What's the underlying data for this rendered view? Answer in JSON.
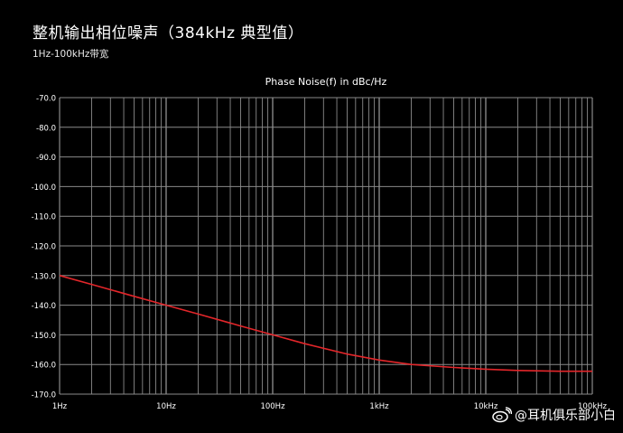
{
  "header": {
    "title": "整机输出相位噪声（384kHz 典型值）",
    "subtitle": "1Hz-100kHz带宽"
  },
  "watermark": {
    "text": "@耳机俱乐部小白",
    "icon": "weibo-logo-icon"
  },
  "colors": {
    "background": "#000000",
    "grid": "#8a8a8a",
    "curve": "#e3262a",
    "text": "#ffffff"
  },
  "chart_data": {
    "type": "line",
    "title": "Phase Noise(f) in dBc/Hz",
    "xscale": "log",
    "xlim": [
      1,
      100000
    ],
    "ylim": [
      -170,
      -70
    ],
    "grid": true,
    "x_tick_labels": [
      "1Hz",
      "10Hz",
      "100Hz",
      "1kHz",
      "10kHz",
      "100kHz"
    ],
    "y_ticks": [
      -70,
      -80,
      -90,
      -100,
      -110,
      -120,
      -130,
      -140,
      -150,
      -160,
      -170
    ],
    "y_tick_labels": [
      "-70.0",
      "-80.0",
      "-90.0",
      "-100.0",
      "-110.0",
      "-120.0",
      "-130.0",
      "-140.0",
      "-150.0",
      "-160.0",
      "-170.0"
    ],
    "series": [
      {
        "x": [
          1,
          2,
          5,
          10,
          20,
          50,
          100,
          200,
          500,
          1000,
          2000,
          5000,
          10000,
          20000,
          50000,
          100000
        ],
        "y": [
          -130,
          -133,
          -137,
          -140,
          -143,
          -147,
          -150,
          -153,
          -156.5,
          -158.5,
          -160,
          -161,
          -161.6,
          -162,
          -162.3,
          -162.3
        ]
      }
    ]
  }
}
